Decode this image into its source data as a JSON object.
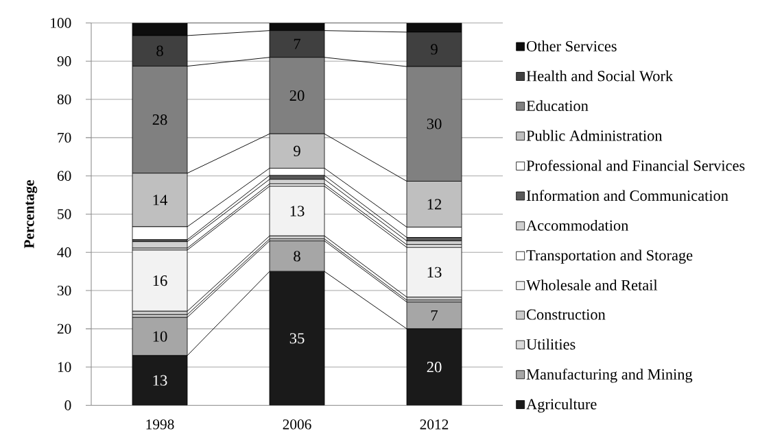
{
  "chart_data": {
    "type": "bar",
    "stacked": true,
    "ylabel": "Percentage",
    "categories": [
      "1998",
      "2006",
      "2012"
    ],
    "ylim": [
      0,
      100
    ],
    "yticks": [
      0,
      10,
      20,
      30,
      40,
      50,
      60,
      70,
      80,
      90,
      100
    ],
    "grid": "y",
    "legend": "right",
    "series": [
      {
        "name": "Agriculture",
        "color": "#1a1a1a",
        "values": [
          13,
          35,
          20
        ],
        "value_labels": [
          "13",
          "35",
          "20"
        ]
      },
      {
        "name": "Manufacturing and Mining",
        "color": "#a6a6a6",
        "values": [
          10,
          8,
          7
        ],
        "value_labels": [
          "10",
          "8",
          "7"
        ]
      },
      {
        "name": "Utilities",
        "color": "#d9d9d9",
        "values": [
          0.7,
          0.5,
          0.5
        ]
      },
      {
        "name": "Construction",
        "color": "#cccccc",
        "values": [
          0.9,
          0.8,
          0.8
        ]
      },
      {
        "name": "Wholesale and Retail",
        "color": "#f2f2f2",
        "values": [
          16,
          13,
          13
        ],
        "value_labels": [
          "16",
          "13",
          "13"
        ]
      },
      {
        "name": "Transportation and Storage",
        "color": "#ffffff",
        "values": [
          0.5,
          0.6,
          0.7
        ]
      },
      {
        "name": "Accommodation",
        "color": "#d0d0d0",
        "values": [
          1.7,
          1.2,
          1.0
        ]
      },
      {
        "name": "Information and Communication",
        "color": "#595959",
        "values": [
          0.5,
          1.0,
          0.9
        ]
      },
      {
        "name": "Professional and Financial Services",
        "color": "#ffffff",
        "values": [
          3.4,
          1.9,
          2.7
        ]
      },
      {
        "name": "Public Administration",
        "color": "#bfbfbf",
        "values": [
          14,
          9,
          12
        ],
        "value_labels": [
          "14",
          "9",
          "12"
        ]
      },
      {
        "name": "Education",
        "color": "#808080",
        "values": [
          28,
          20,
          30
        ],
        "value_labels": [
          "28",
          "20",
          "30"
        ]
      },
      {
        "name": "Health and Social Work",
        "color": "#404040",
        "values": [
          8,
          7,
          9
        ],
        "value_labels": [
          "8",
          "7",
          "9"
        ]
      },
      {
        "name": "Other Services",
        "color": "#0d0d0d",
        "values": [
          3.3,
          2.0,
          2.4
        ]
      }
    ]
  }
}
